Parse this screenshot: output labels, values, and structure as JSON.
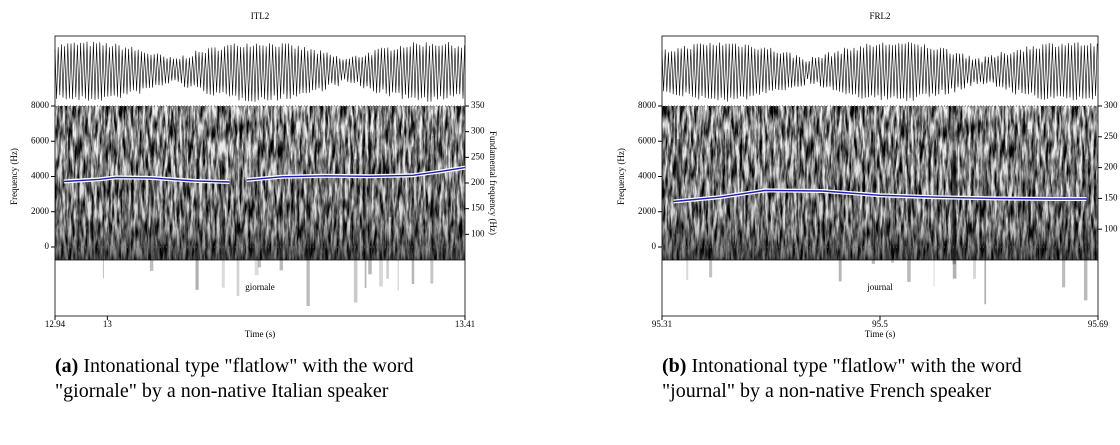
{
  "panels": [
    {
      "title": "ITL2",
      "word": "giornale",
      "y_label": "Frequency (Hz)",
      "y2_label": "Fundamental frequency (Hz)",
      "x_label": "Time (s)",
      "xlim": [
        12.94,
        13.41
      ],
      "xticks": [
        12.94,
        13,
        13.41
      ],
      "ylim": [
        0,
        8000
      ],
      "yticks": [
        0,
        2000,
        4000,
        6000,
        8000
      ],
      "y2lim": [
        50,
        350
      ],
      "y2ticks": [
        100,
        150,
        200,
        250,
        300,
        350
      ],
      "pitch": {
        "color": "#1f1fb0",
        "x": [
          12.95,
          12.97,
          12.99,
          13.01,
          13.05,
          13.1,
          13.14,
          13.15,
          13.16,
          13.2,
          13.25,
          13.3,
          13.35,
          13.38,
          13.41
        ],
        "values": [
          203,
          205,
          207,
          211,
          210,
          204,
          202,
          null,
          206,
          212,
          214,
          213,
          215,
          222,
          230
        ]
      },
      "caption": {
        "label": "(a)",
        "text": "Intonational type \"flatlow\" with the word \"giornale\" by a non-native Italian speaker"
      }
    },
    {
      "title": "FRL2",
      "word": "journal",
      "y_label": "Frequency (Hz)",
      "y2_label": "Fundamental frequency (Hz)",
      "x_label": "Time (s)",
      "xlim": [
        95.31,
        95.69
      ],
      "xticks": [
        95.31,
        95.5,
        95.69
      ],
      "ylim": [
        0,
        8000
      ],
      "yticks": [
        0,
        2000,
        4000,
        6000,
        8000
      ],
      "y2lim": [
        50,
        300
      ],
      "y2ticks": [
        100,
        150,
        200,
        250,
        300
      ],
      "pitch": {
        "color": "#1f1fb0",
        "x": [
          95.32,
          95.36,
          95.4,
          95.45,
          95.5,
          95.55,
          95.6,
          95.65,
          95.68
        ],
        "values": [
          145,
          152,
          163,
          162,
          155,
          152,
          150,
          149,
          149
        ]
      },
      "caption": {
        "label": "(b)",
        "text": "Intonational type \"flatlow\" with the word \"journal\" by a non-native French speaker"
      }
    }
  ]
}
